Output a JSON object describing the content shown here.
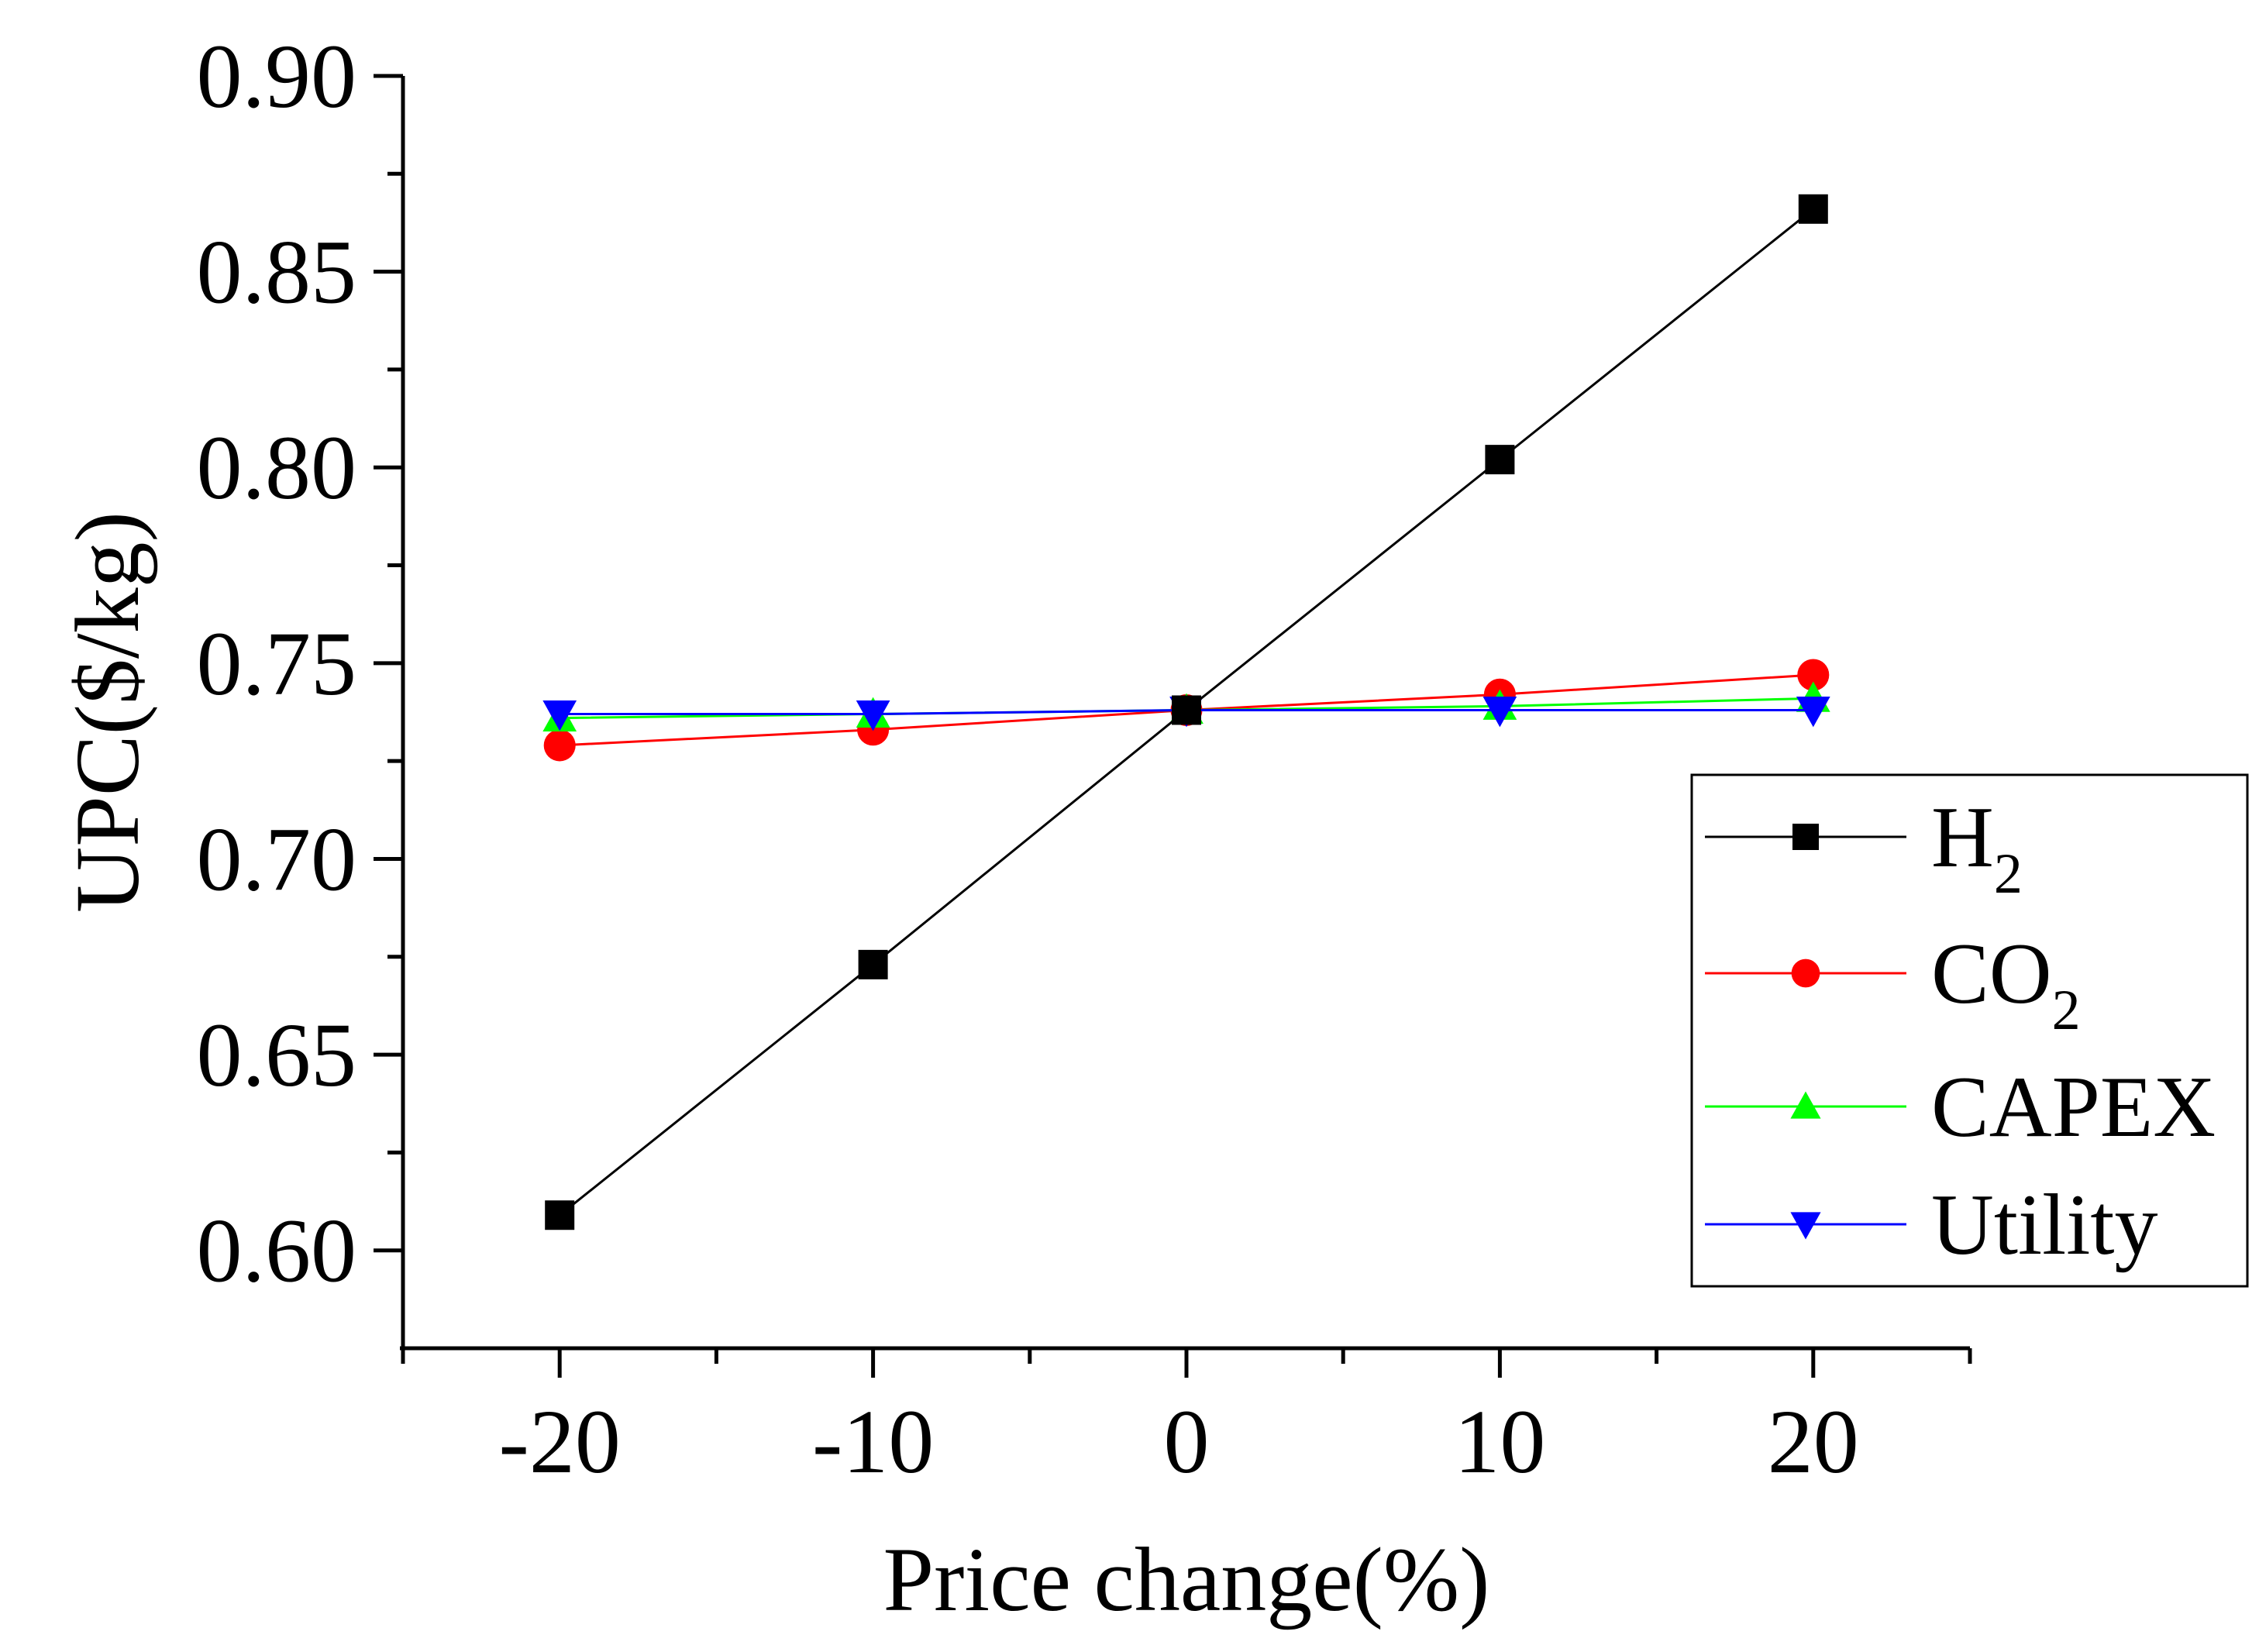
{
  "chart_data": {
    "type": "line",
    "title": "",
    "xlabel": "Price change(%)",
    "ylabel": "UPC($/kg)",
    "x": [
      -20,
      -10,
      0,
      10,
      20
    ],
    "xlim": [
      -25,
      25
    ],
    "ylim": [
      0.575,
      0.9
    ],
    "xticks": [
      -20,
      -10,
      0,
      10,
      20
    ],
    "xtick_labels": [
      "-20",
      "-10",
      "0",
      "10",
      "20"
    ],
    "yticks": [
      0.6,
      0.65,
      0.7,
      0.75,
      0.8,
      0.85,
      0.9
    ],
    "ytick_labels": [
      "0.60",
      "0.65",
      "0.70",
      "0.75",
      "0.80",
      "0.85",
      "0.90"
    ],
    "grid": false,
    "legend_position": "right",
    "series": [
      {
        "name": "H2",
        "label_main": "H",
        "label_sub": "2",
        "color": "#000000",
        "marker": "square",
        "values": [
          0.609,
          0.673,
          0.738,
          0.802,
          0.866
        ]
      },
      {
        "name": "CO2",
        "label_main": "CO",
        "label_sub": "2",
        "color": "#ff0000",
        "marker": "circle",
        "values": [
          0.729,
          0.733,
          0.738,
          0.742,
          0.747
        ]
      },
      {
        "name": "CAPEX",
        "label_main": "CAPEX",
        "label_sub": "",
        "color": "#00ff00",
        "marker": "triangle-up",
        "values": [
          0.736,
          0.737,
          0.738,
          0.739,
          0.741
        ]
      },
      {
        "name": "Utility",
        "label_main": "Utility",
        "label_sub": "",
        "color": "#0000ff",
        "marker": "triangle-down",
        "values": [
          0.737,
          0.737,
          0.738,
          0.738,
          0.738
        ]
      }
    ]
  }
}
